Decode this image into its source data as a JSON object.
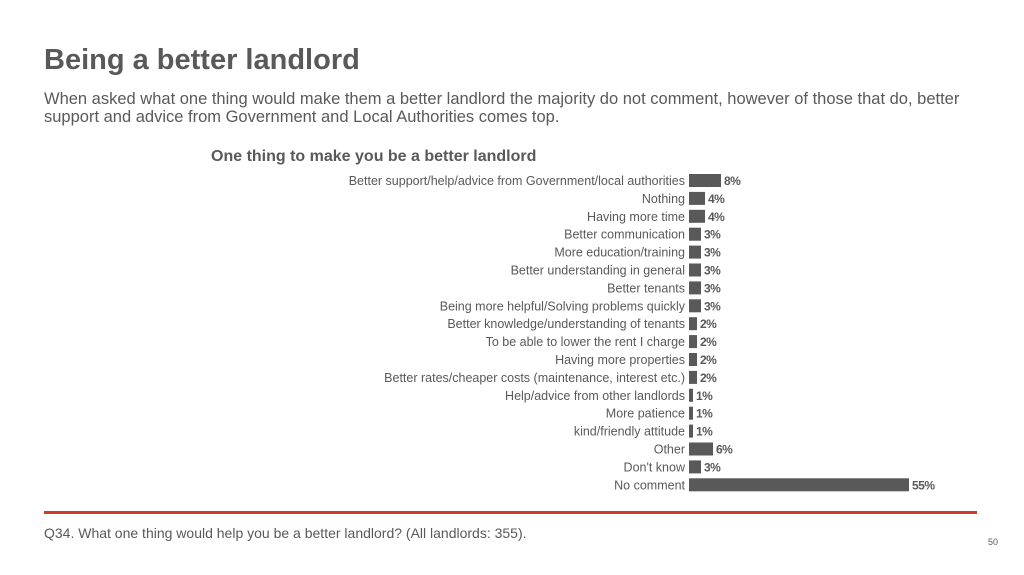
{
  "page": {
    "title": "Being a better landlord",
    "subtitle": "When asked what one thing would make them a better landlord the majority do not comment, however of those that do, better support and advice from Government and Local Authorities comes top.",
    "footnote": "Q34. What one thing would help you be a better landlord? (All landlords: 355).",
    "page_number": "50"
  },
  "colors": {
    "bar": "#595959",
    "text": "#595959",
    "divider": "#d13b2a"
  },
  "chart_data": {
    "type": "bar",
    "orientation": "horizontal",
    "title": "One thing to make you be a better landlord",
    "categories": [
      "Better support/help/advice from Government/local authorities",
      "Nothing",
      "Having more time",
      "Better communication",
      "More education/training",
      "Better understanding in general",
      "Better tenants",
      "Being more helpful/Solving problems quickly",
      "Better knowledge/understanding of tenants",
      "To be able to lower the rent I charge",
      "Having more properties",
      "Better rates/cheaper costs (maintenance, interest etc.)",
      "Help/advice from other landlords",
      "More patience",
      "kind/friendly attitude",
      "Other",
      "Don't know",
      "No comment"
    ],
    "values": [
      8,
      4,
      4,
      3,
      3,
      3,
      3,
      3,
      2,
      2,
      2,
      2,
      1,
      1,
      1,
      6,
      3,
      55
    ],
    "value_labels": [
      "8%",
      "4%",
      "4%",
      "3%",
      "3%",
      "3%",
      "3%",
      "3%",
      "2%",
      "2%",
      "2%",
      "2%",
      "1%",
      "1%",
      "1%",
      "6%",
      "3%",
      "55%"
    ],
    "unit": "%",
    "xlim": [
      0,
      55
    ],
    "grid": false,
    "legend": "none"
  }
}
